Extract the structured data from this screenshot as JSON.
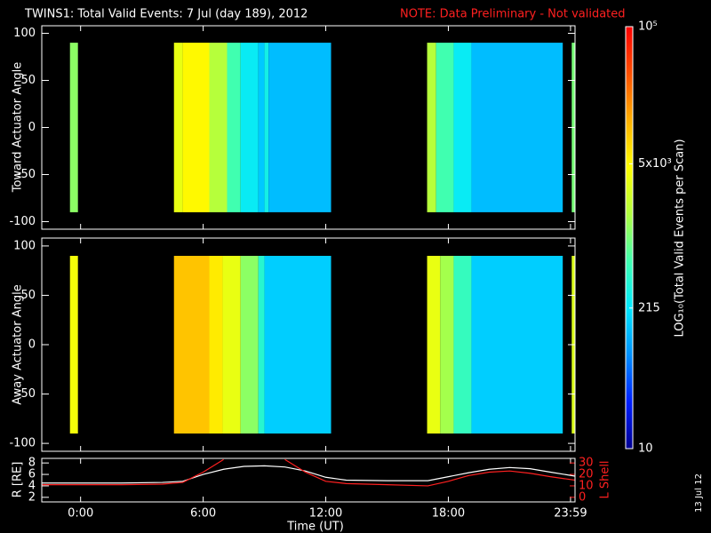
{
  "title": "TWINS1: Total Valid Events:  7 Jul (day 189), 2012",
  "note": "NOTE: Data Preliminary - Not validated",
  "date_stamp": "13 Jul 12",
  "colorbar": {
    "label": "LOG₁₀(Total Valid Events per Scan)",
    "scale": "log",
    "lim": [
      10,
      100000
    ],
    "ticks": [
      {
        "value": 100000,
        "label": "10⁵"
      },
      {
        "value": 5000,
        "label": "5x10³"
      },
      215,
      10
    ],
    "colors": [
      "#000090",
      "#0020ff",
      "#0090ff",
      "#00e8ff",
      "#40ffb0",
      "#b0ff40",
      "#ffff00",
      "#ffb000",
      "#ff5000",
      "#ff0000"
    ]
  },
  "chart_data": [
    {
      "type": "heatmap",
      "ylabel": "Toward Actuator Angle",
      "xlim": [
        -1.9,
        24.2
      ],
      "ylim": [
        -108,
        108
      ],
      "yticks": [
        100,
        50,
        0,
        -50,
        -100
      ],
      "yrange": [
        -90,
        90
      ],
      "segments": [
        {
          "start": -0.52,
          "end": -0.13,
          "value": 1200
        },
        {
          "start": 4.57,
          "end": 5.0,
          "value": 3500
        },
        {
          "start": 5.0,
          "end": 6.3,
          "value": 5000
        },
        {
          "start": 6.3,
          "end": 7.17,
          "value": 1800
        },
        {
          "start": 7.17,
          "end": 7.83,
          "value": 600
        },
        {
          "start": 7.83,
          "end": 8.7,
          "value": 250
        },
        {
          "start": 8.7,
          "end": 9.0,
          "value": 150
        },
        {
          "start": 9.0,
          "end": 9.2,
          "value": 300
        },
        {
          "start": 9.2,
          "end": 12.26,
          "value": 130
        },
        {
          "start": 16.96,
          "end": 17.4,
          "value": 1800
        },
        {
          "start": 17.4,
          "end": 18.26,
          "value": 600
        },
        {
          "start": 18.26,
          "end": 19.13,
          "value": 250
        },
        {
          "start": 19.13,
          "end": 23.6,
          "value": 130
        },
        {
          "start": 24.04,
          "end": 24.2,
          "value": 1000
        }
      ]
    },
    {
      "type": "heatmap",
      "ylabel": "Away Actuator Angle",
      "xlim": [
        -1.9,
        24.2
      ],
      "ylim": [
        -108,
        108
      ],
      "yticks": [
        100,
        50,
        0,
        -50,
        -100
      ],
      "yrange": [
        -90,
        90
      ],
      "segments": [
        {
          "start": -0.52,
          "end": -0.13,
          "value": 4000
        },
        {
          "start": 4.57,
          "end": 6.3,
          "value": 10000
        },
        {
          "start": 6.3,
          "end": 6.95,
          "value": 6000
        },
        {
          "start": 6.95,
          "end": 7.83,
          "value": 3500
        },
        {
          "start": 7.83,
          "end": 8.7,
          "value": 1200
        },
        {
          "start": 8.7,
          "end": 9.0,
          "value": 400
        },
        {
          "start": 9.0,
          "end": 12.26,
          "value": 160
        },
        {
          "start": 16.96,
          "end": 17.6,
          "value": 3500
        },
        {
          "start": 17.6,
          "end": 18.26,
          "value": 1500
        },
        {
          "start": 18.26,
          "end": 19.13,
          "value": 500
        },
        {
          "start": 19.13,
          "end": 23.6,
          "value": 160
        },
        {
          "start": 24.04,
          "end": 24.2,
          "value": 3000
        }
      ]
    },
    {
      "type": "line",
      "xlabel": "Time (UT)",
      "ylabel": "R [RE]",
      "y2label": "L Shell",
      "xlim": [
        -1.9,
        24.2
      ],
      "xticks": [
        {
          "value": 0,
          "label": "0:00"
        },
        {
          "value": 6,
          "label": "6:00"
        },
        {
          "value": 12,
          "label": "12:00"
        },
        {
          "value": 18,
          "label": "18:00"
        },
        {
          "value": 23.98,
          "label": "23:59"
        }
      ],
      "ylim": [
        1.2,
        8.8
      ],
      "yticks": [
        2,
        4,
        6,
        8
      ],
      "y2lim": [
        -4,
        34
      ],
      "y2ticks": [
        0,
        10,
        20,
        30
      ],
      "x": [
        -1.9,
        0,
        2,
        4,
        5,
        6,
        7,
        8,
        9,
        10,
        11,
        12,
        13,
        15,
        17,
        18,
        19,
        20,
        21,
        22,
        23,
        24.2
      ],
      "series": [
        {
          "name": "R",
          "color": "#ffffff",
          "values": [
            4.5,
            4.5,
            4.5,
            4.6,
            4.8,
            6.0,
            6.9,
            7.4,
            7.5,
            7.3,
            6.6,
            5.5,
            5.0,
            4.9,
            4.9,
            5.6,
            6.3,
            6.9,
            7.2,
            7.0,
            6.4,
            5.7
          ]
        },
        {
          "name": "L Shell",
          "color": "#ff2020",
          "axis": "y2",
          "values": [
            11,
            11,
            11,
            11.5,
            13,
            22,
            33,
            null,
            null,
            33,
            22,
            14,
            12,
            11,
            10,
            14,
            19,
            22,
            23,
            21,
            18,
            15
          ]
        }
      ]
    }
  ]
}
